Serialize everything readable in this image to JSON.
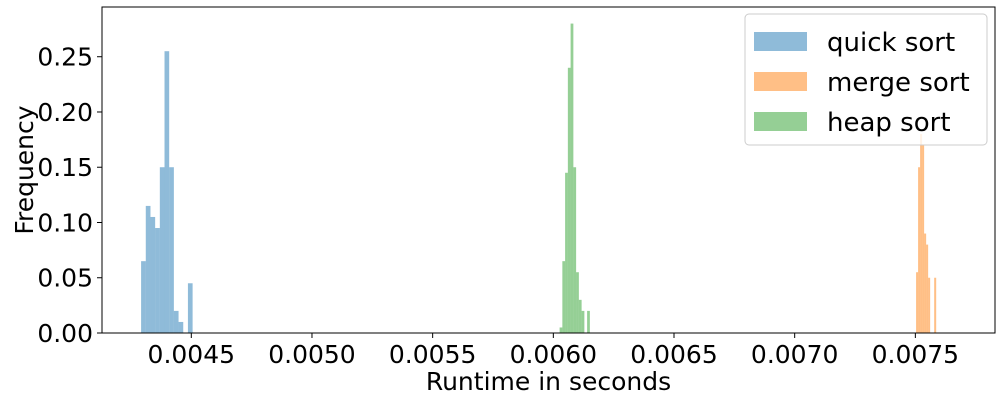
{
  "chart_data": {
    "type": "histogram",
    "title": "",
    "xlabel": "Runtime in seconds",
    "ylabel": "Frequency",
    "xlim": [
      0.00413,
      0.00783
    ],
    "ylim": [
      0,
      0.295
    ],
    "xticks": [
      {
        "value": 0.0045,
        "label": "0.0045"
      },
      {
        "value": 0.005,
        "label": "0.0050"
      },
      {
        "value": 0.0055,
        "label": "0.0055"
      },
      {
        "value": 0.006,
        "label": "0.0060"
      },
      {
        "value": 0.0065,
        "label": "0.0065"
      },
      {
        "value": 0.007,
        "label": "0.0070"
      },
      {
        "value": 0.0075,
        "label": "0.0075"
      }
    ],
    "yticks": [
      {
        "value": 0.0,
        "label": "0.00"
      },
      {
        "value": 0.05,
        "label": "0.05"
      },
      {
        "value": 0.1,
        "label": "0.10"
      },
      {
        "value": 0.15,
        "label": "0.15"
      },
      {
        "value": 0.2,
        "label": "0.20"
      },
      {
        "value": 0.25,
        "label": "0.25"
      }
    ],
    "grid": false,
    "legend_position": "top-right",
    "series": [
      {
        "name": "quick sort",
        "color": "#1f77b4",
        "alpha": 0.5,
        "bin_start": 0.004292,
        "bin_width": 1.94e-05,
        "values": [
          0.065,
          0.115,
          0.105,
          0.095,
          0.15,
          0.255,
          0.15,
          0.02,
          0.01,
          0.0,
          0.045
        ]
      },
      {
        "name": "merge sort",
        "color": "#ff7f0e",
        "alpha": 0.5,
        "bin_start": 0.007503,
        "bin_width": 8.33e-06,
        "values": [
          0.055,
          0.15,
          0.18,
          0.17,
          0.09,
          0.08,
          0.05,
          0.0,
          0.0,
          0.05
        ]
      },
      {
        "name": "heap sort",
        "color": "#2ca02c",
        "alpha": 0.5,
        "bin_start": 0.006026,
        "bin_width": 1.14e-05,
        "values": [
          0.005,
          0.065,
          0.145,
          0.24,
          0.28,
          0.15,
          0.055,
          0.03,
          0.02,
          0.0,
          0.02
        ]
      }
    ]
  }
}
